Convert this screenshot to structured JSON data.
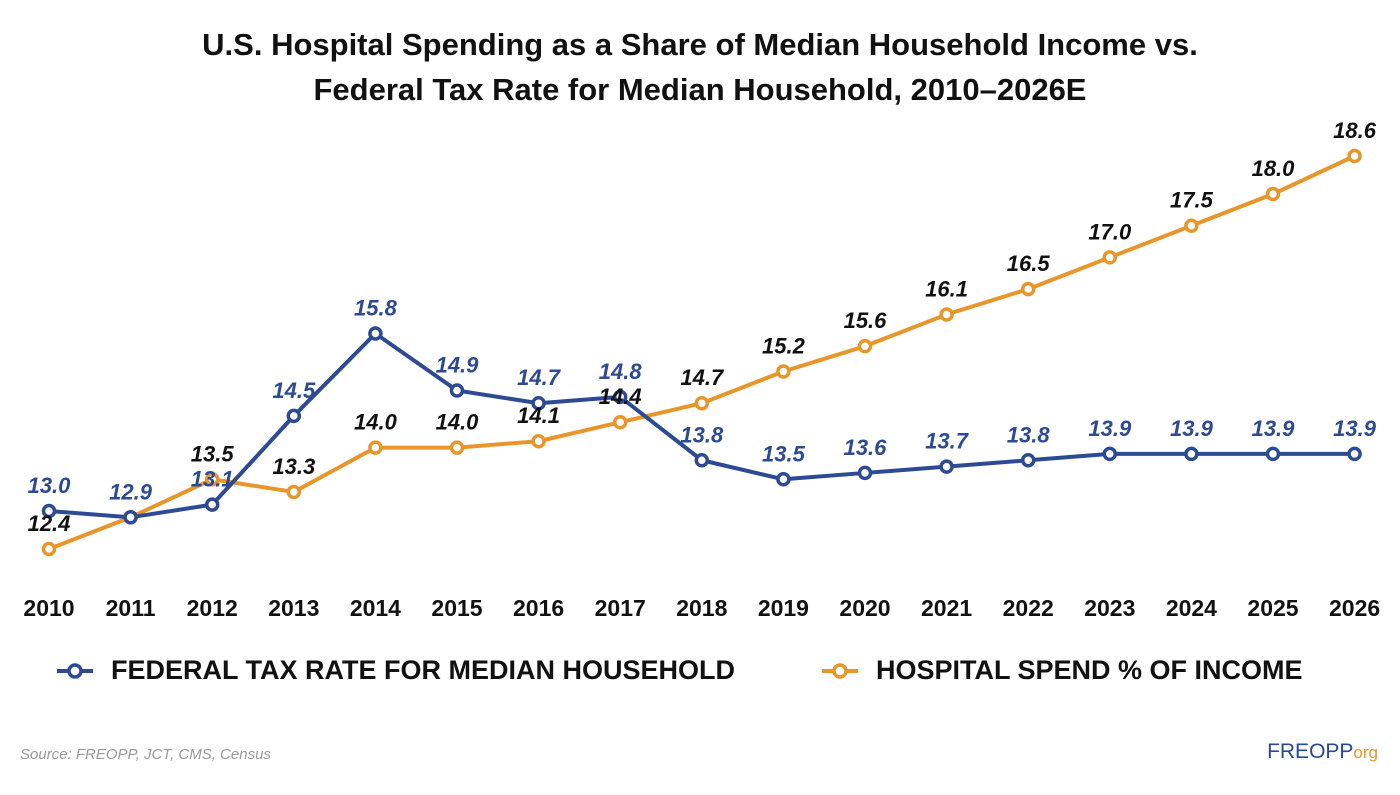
{
  "chart_data": {
    "type": "line",
    "title_lines": [
      "U.S. Hospital Spending as a Share of Median Household Income vs.",
      "Federal Tax Rate for Median Household, 2010–2026E"
    ],
    "categories": [
      "2010",
      "2011",
      "2012",
      "2013",
      "2014",
      "2015",
      "2016",
      "2017",
      "2018",
      "2019",
      "2020",
      "2021",
      "2022",
      "2023",
      "2024",
      "2025",
      "2026"
    ],
    "series": [
      {
        "name": "FEDERAL TAX RATE FOR MEDIAN HOUSEHOLD",
        "color": "#2d4a94",
        "label_color": "#2d4a94",
        "values": [
          13.0,
          12.9,
          13.1,
          14.5,
          15.8,
          14.9,
          14.7,
          14.8,
          13.8,
          13.5,
          13.6,
          13.7,
          13.8,
          13.9,
          13.9,
          13.9,
          13.9
        ],
        "labels": [
          "13.0",
          "12.9",
          "13.1",
          "14.5",
          "15.8",
          "14.9",
          "14.7",
          "14.8",
          "13.8",
          "13.5",
          "13.6",
          "13.7",
          "13.8",
          "13.9",
          "13.9",
          "13.9",
          "13.9"
        ]
      },
      {
        "name": "HOSPITAL SPEND % OF INCOME",
        "color": "#e8962a",
        "label_color": "#111111",
        "values": [
          12.4,
          12.9,
          13.5,
          13.3,
          14.0,
          14.0,
          14.1,
          14.4,
          14.7,
          15.2,
          15.6,
          16.1,
          16.5,
          17.0,
          17.5,
          18.0,
          18.6
        ],
        "labels": [
          "12.4",
          "",
          "13.5",
          "13.3",
          "14.0",
          "14.0",
          "14.1",
          "14.4",
          "14.7",
          "15.2",
          "15.6",
          "16.1",
          "16.5",
          "17.0",
          "17.5",
          "18.0",
          "18.6"
        ]
      }
    ],
    "xlabel": "",
    "ylabel": "",
    "ylim": [
      12.4,
      18.6
    ],
    "grid": false,
    "legend_position": "bottom"
  },
  "footer": {
    "source": "Source: FREOPP, JCT, CMS, Census",
    "brand_main": "FREOPP",
    "brand_suffix": "org"
  }
}
